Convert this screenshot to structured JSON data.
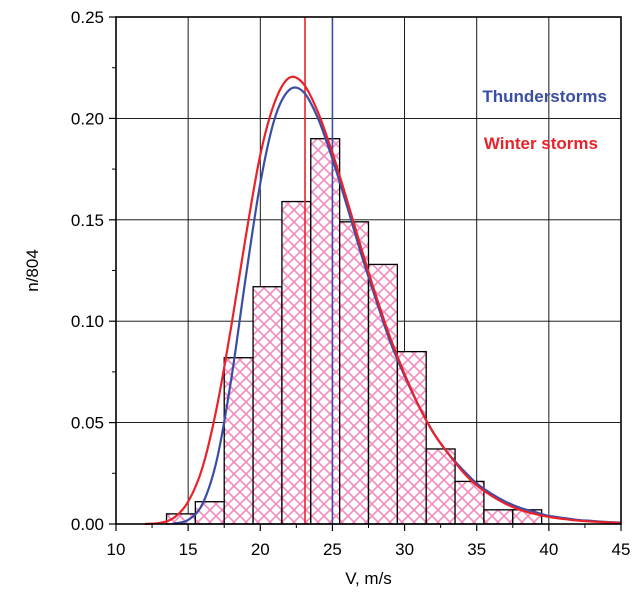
{
  "chart_data": {
    "type": "bar",
    "xlabel": "V, m/s",
    "ylabel": "n/804",
    "xlim": [
      10,
      45
    ],
    "ylim": [
      0,
      0.25
    ],
    "xticks": [
      10,
      15,
      20,
      25,
      30,
      35,
      40,
      45
    ],
    "yticks": [
      0.0,
      0.05,
      0.1,
      0.15,
      0.2,
      0.25
    ],
    "ytick_labels": [
      "0.00",
      "0.05",
      "0.10",
      "0.15",
      "0.20",
      "0.25"
    ],
    "grid": true,
    "histogram": {
      "bin_width": 2,
      "bin_starts": [
        13.5,
        15.5,
        17.5,
        19.5,
        21.5,
        23.5,
        25.5,
        27.5,
        29.5,
        31.5,
        33.5,
        35.5,
        37.5
      ],
      "values": [
        0.005,
        0.011,
        0.082,
        0.117,
        0.159,
        0.19,
        0.149,
        0.128,
        0.085,
        0.037,
        0.021,
        0.007,
        0.007
      ],
      "hatch_color": "#f48bbf",
      "edge_color": "#000000"
    },
    "series": [
      {
        "name": "Thunderstorms",
        "type": "line",
        "color": "#3a4ea6",
        "x": [
          14,
          15,
          16,
          17,
          18,
          19,
          20,
          21,
          22,
          23,
          24,
          25,
          26,
          27,
          28,
          29,
          30,
          31,
          32,
          33,
          34,
          35,
          36,
          37,
          38,
          39,
          40,
          41,
          42,
          43,
          44,
          45
        ],
        "y": [
          0.0003,
          0.002,
          0.01,
          0.032,
          0.072,
          0.122,
          0.168,
          0.2,
          0.214,
          0.213,
          0.2,
          0.18,
          0.157,
          0.133,
          0.111,
          0.09,
          0.073,
          0.058,
          0.045,
          0.035,
          0.027,
          0.02,
          0.015,
          0.011,
          0.008,
          0.006,
          0.004,
          0.003,
          0.002,
          0.0015,
          0.001,
          0.0007
        ],
        "vline": 25
      },
      {
        "name": "Winter storms",
        "type": "line",
        "color": "#e8232b",
        "x": [
          12,
          13,
          14,
          15,
          16,
          17,
          18,
          19,
          20,
          21,
          22,
          23,
          24,
          25,
          26,
          27,
          28,
          29,
          30,
          31,
          32,
          33,
          34,
          35,
          36,
          37,
          38,
          39,
          40,
          41,
          42,
          43,
          44,
          45
        ],
        "y": [
          0.0,
          0.0005,
          0.003,
          0.011,
          0.028,
          0.058,
          0.098,
          0.142,
          0.182,
          0.208,
          0.22,
          0.217,
          0.203,
          0.183,
          0.16,
          0.136,
          0.113,
          0.092,
          0.074,
          0.058,
          0.045,
          0.035,
          0.026,
          0.019,
          0.014,
          0.01,
          0.007,
          0.005,
          0.0035,
          0.0025,
          0.0017,
          0.0012,
          0.0008,
          0.0005
        ],
        "vline": 23.1
      }
    ],
    "legend_position": "top-right"
  }
}
